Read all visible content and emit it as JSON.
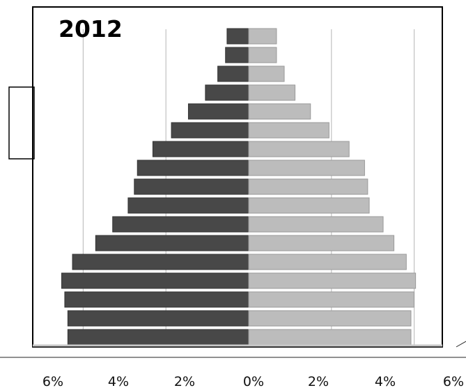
{
  "chart_data": {
    "type": "bar",
    "orientation": "horizontal-diverging",
    "title": "2012",
    "xlabel": "",
    "ylabel": "",
    "xlim": [
      -6,
      6
    ],
    "x_tick_labels": [
      "6%",
      "4%",
      "2%",
      "0%",
      "2%",
      "4%",
      "6%"
    ],
    "x_tick_values": [
      -6,
      -4,
      -2,
      0,
      2,
      4,
      6
    ],
    "grid": true,
    "colors": {
      "left": "#484848",
      "right": "#bcbcbc",
      "grid": "#b5b5b5",
      "frame": "#000000"
    },
    "series": [
      {
        "side": "left",
        "values": [
          0.7,
          0.75,
          1.0,
          1.4,
          1.95,
          2.5,
          3.1,
          3.6,
          3.7,
          3.9,
          4.4,
          4.95,
          5.7,
          6.05,
          5.95,
          5.85,
          5.85
        ]
      },
      {
        "side": "right",
        "values": [
          0.9,
          0.9,
          1.15,
          1.5,
          2.0,
          2.6,
          3.25,
          3.75,
          3.85,
          3.9,
          4.35,
          4.7,
          5.1,
          5.4,
          5.35,
          5.25,
          5.25
        ]
      }
    ]
  }
}
